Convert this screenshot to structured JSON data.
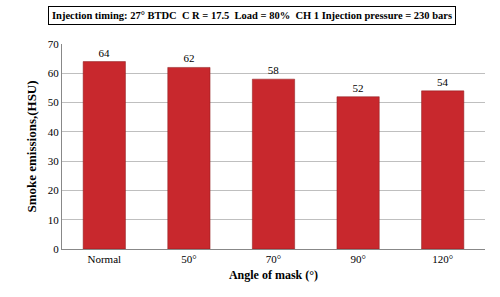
{
  "chart_data": {
    "type": "bar",
    "title": "Injection timing: 27° BTDC  C R = 17.5  Load = 80%  CH 1 Injection pressure = 230 bars",
    "x_label": "Angle of mask (°)",
    "y_label": "Smoke emissions,(HSU)",
    "categories": [
      "Normal",
      "50°",
      "70°",
      "90°",
      "120°"
    ],
    "values": [
      64,
      62,
      58,
      52,
      54
    ],
    "color": "#c8282d",
    "ylim": [
      0,
      70
    ],
    "yticks": [
      0,
      10,
      20,
      30,
      40,
      50,
      60,
      70
    ],
    "grid": true,
    "data_labels": true
  }
}
